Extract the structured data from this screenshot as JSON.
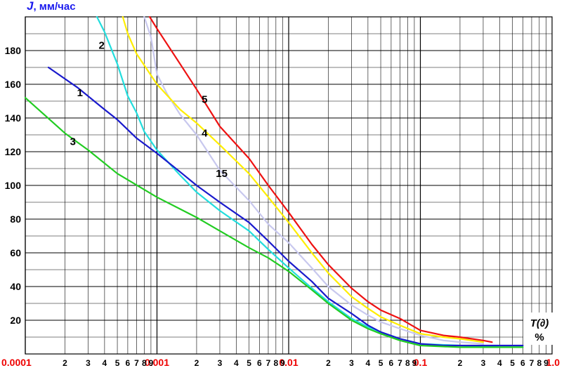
{
  "chart_data": {
    "type": "line",
    "title": "",
    "ylabel_symbol": "J",
    "ylabel_unit": ", мм/час",
    "xlabel_line1": "T(∂)",
    "xlabel_line2": "%",
    "x_scale": "log",
    "xlim": [
      0.0001,
      1.0
    ],
    "ylim": [
      0,
      200
    ],
    "yticks": [
      20,
      40,
      60,
      80,
      100,
      120,
      140,
      160,
      180
    ],
    "x_major_ticks": [
      {
        "value": 0.0001,
        "label": "0.0001"
      },
      {
        "value": 0.001,
        "label": "0.001"
      },
      {
        "value": 0.01,
        "label": "0.01"
      },
      {
        "value": 0.1,
        "label": "0.1"
      },
      {
        "value": 1.0,
        "label": "1.0"
      }
    ],
    "x_minor_labels": [
      "2",
      "3",
      "4",
      "5",
      "6",
      "7",
      "8",
      "9"
    ],
    "grid": true,
    "colors": {
      "major_tick_labels": "#ee0000",
      "grid": "#000000",
      "y_label_symbol": "#1a1aee"
    },
    "series": [
      {
        "name": "1",
        "color": "#1a1acc",
        "points": [
          [
            0.00015,
            170
          ],
          [
            0.00025,
            158
          ],
          [
            0.0004,
            145
          ],
          [
            0.0005,
            139
          ],
          [
            0.0007,
            128
          ],
          [
            0.001,
            119
          ],
          [
            0.0015,
            108
          ],
          [
            0.002,
            100
          ],
          [
            0.003,
            90
          ],
          [
            0.005,
            78
          ],
          [
            0.007,
            67
          ],
          [
            0.01,
            55
          ],
          [
            0.015,
            43
          ],
          [
            0.02,
            33
          ],
          [
            0.03,
            24
          ],
          [
            0.04,
            17
          ],
          [
            0.05,
            13
          ],
          [
            0.07,
            9
          ],
          [
            0.1,
            6
          ],
          [
            0.15,
            5
          ],
          [
            0.2,
            5
          ],
          [
            0.4,
            5
          ],
          [
            0.6,
            5
          ]
        ]
      },
      {
        "name": "2",
        "color": "#22dddd",
        "points": [
          [
            0.00035,
            200
          ],
          [
            0.0004,
            191
          ],
          [
            0.0005,
            172
          ],
          [
            0.0006,
            153
          ],
          [
            0.0007,
            143
          ],
          [
            0.0008,
            132
          ],
          [
            0.001,
            121
          ],
          [
            0.0015,
            106
          ],
          [
            0.002,
            96
          ],
          [
            0.003,
            85
          ],
          [
            0.005,
            73
          ],
          [
            0.007,
            62
          ],
          [
            0.01,
            51
          ],
          [
            0.015,
            39
          ],
          [
            0.02,
            31
          ],
          [
            0.03,
            21
          ],
          [
            0.04,
            16
          ],
          [
            0.05,
            13
          ],
          [
            0.07,
            9
          ],
          [
            0.1,
            6
          ],
          [
            0.2,
            5
          ],
          [
            0.4,
            4
          ],
          [
            0.6,
            4
          ]
        ]
      },
      {
        "name": "3",
        "color": "#22cc22",
        "points": [
          [
            0.0001,
            152
          ],
          [
            0.0002,
            131
          ],
          [
            0.0003,
            121
          ],
          [
            0.0005,
            107
          ],
          [
            0.001,
            93
          ],
          [
            0.002,
            81
          ],
          [
            0.003,
            73
          ],
          [
            0.005,
            63
          ],
          [
            0.007,
            57
          ],
          [
            0.01,
            49
          ],
          [
            0.015,
            38
          ],
          [
            0.02,
            30
          ],
          [
            0.03,
            20
          ],
          [
            0.04,
            15
          ],
          [
            0.05,
            12
          ],
          [
            0.07,
            8
          ],
          [
            0.1,
            5
          ],
          [
            0.2,
            4
          ],
          [
            0.4,
            4
          ],
          [
            0.6,
            4
          ]
        ]
      },
      {
        "name": "4",
        "color": "#ffee00",
        "points": [
          [
            0.00055,
            200
          ],
          [
            0.0006,
            190
          ],
          [
            0.0007,
            178
          ],
          [
            0.001,
            160
          ],
          [
            0.0015,
            145
          ],
          [
            0.002,
            137
          ],
          [
            0.003,
            124
          ],
          [
            0.005,
            107
          ],
          [
            0.007,
            93
          ],
          [
            0.01,
            78
          ],
          [
            0.015,
            60
          ],
          [
            0.02,
            48
          ],
          [
            0.03,
            34
          ],
          [
            0.04,
            27
          ],
          [
            0.05,
            22
          ],
          [
            0.07,
            17
          ],
          [
            0.1,
            12
          ],
          [
            0.15,
            10
          ],
          [
            0.2,
            9
          ],
          [
            0.3,
            7
          ]
        ]
      },
      {
        "name": "5",
        "color": "#ee1111",
        "points": [
          [
            0.00088,
            200
          ],
          [
            0.001,
            193
          ],
          [
            0.0015,
            172
          ],
          [
            0.002,
            157
          ],
          [
            0.003,
            135
          ],
          [
            0.005,
            116
          ],
          [
            0.007,
            100
          ],
          [
            0.01,
            84
          ],
          [
            0.015,
            65
          ],
          [
            0.02,
            53
          ],
          [
            0.03,
            39
          ],
          [
            0.04,
            31
          ],
          [
            0.05,
            26
          ],
          [
            0.07,
            21
          ],
          [
            0.1,
            14
          ],
          [
            0.15,
            11
          ],
          [
            0.2,
            10
          ],
          [
            0.3,
            8
          ],
          [
            0.35,
            7
          ]
        ]
      },
      {
        "name": "15",
        "color": "#c8c8ee",
        "points": [
          [
            0.0008,
            200
          ],
          [
            0.0009,
            188
          ],
          [
            0.001,
            166
          ],
          [
            0.0012,
            154
          ],
          [
            0.0015,
            142
          ],
          [
            0.002,
            130
          ],
          [
            0.003,
            109
          ],
          [
            0.005,
            91
          ],
          [
            0.007,
            77
          ],
          [
            0.01,
            66
          ],
          [
            0.015,
            51
          ],
          [
            0.02,
            40
          ],
          [
            0.03,
            29
          ],
          [
            0.04,
            23
          ],
          [
            0.05,
            19
          ],
          [
            0.07,
            15
          ],
          [
            0.1,
            11
          ],
          [
            0.15,
            8
          ],
          [
            0.2,
            7
          ],
          [
            0.3,
            6
          ]
        ]
      }
    ],
    "series_labels": [
      {
        "text": "1",
        "x": 0.00026,
        "y": 153
      },
      {
        "text": "2",
        "x": 0.00038,
        "y": 181
      },
      {
        "text": "3",
        "x": 0.00023,
        "y": 124
      },
      {
        "text": "4",
        "x": 0.0023,
        "y": 129
      },
      {
        "text": "5",
        "x": 0.0023,
        "y": 149
      },
      {
        "text": "15",
        "x": 0.0031,
        "y": 105
      }
    ]
  }
}
